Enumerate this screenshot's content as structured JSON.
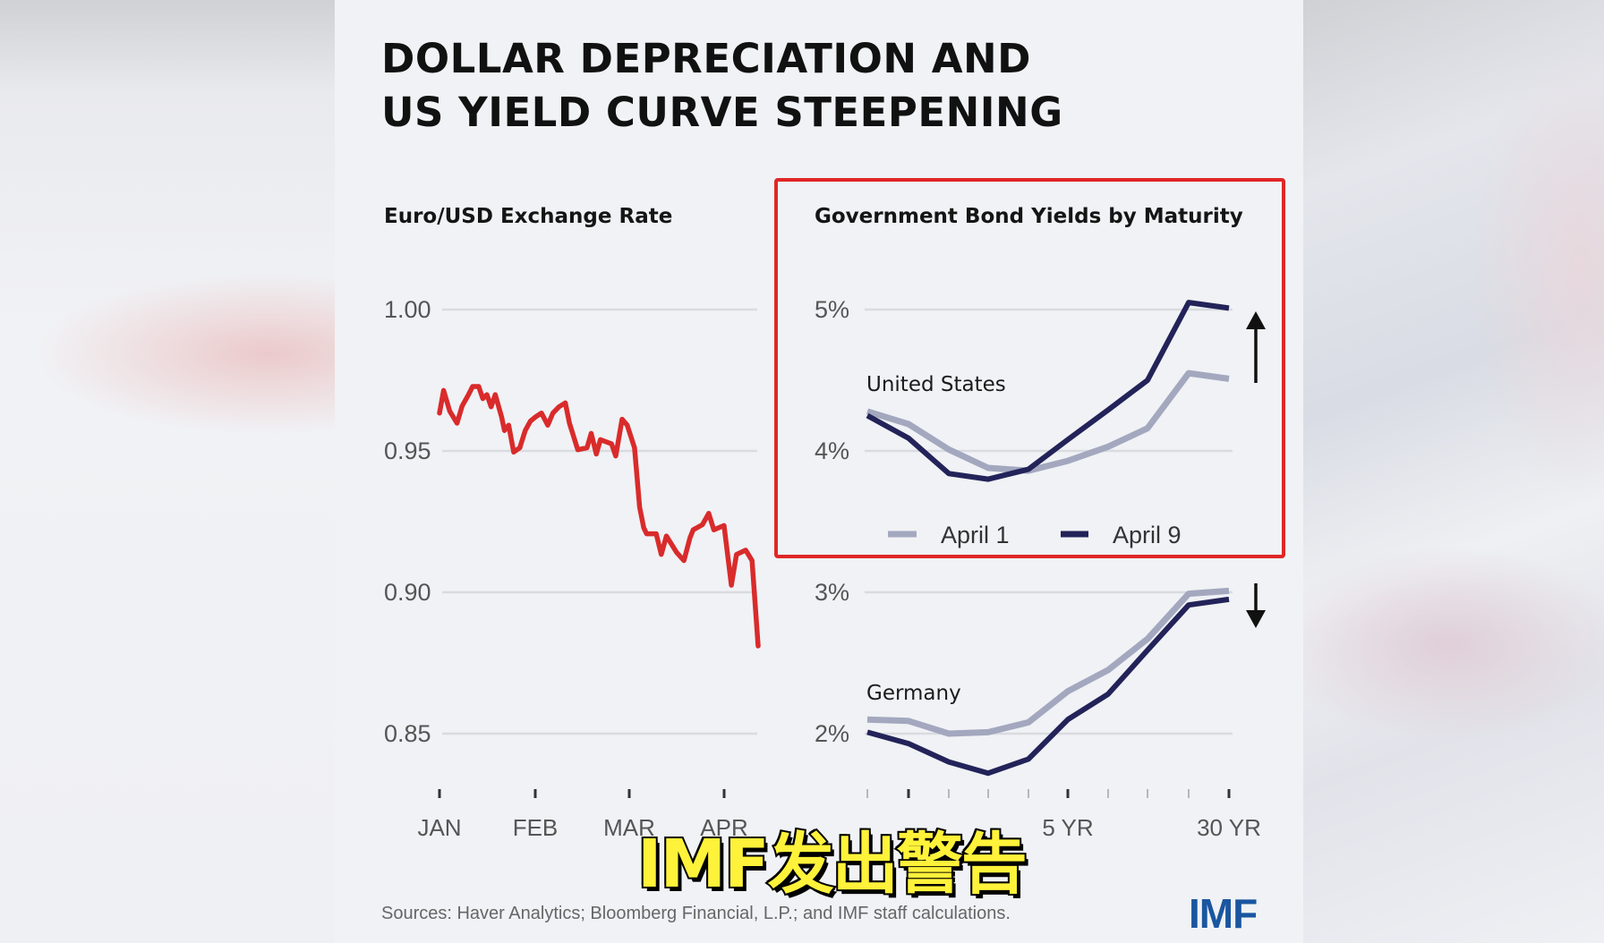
{
  "title": {
    "line1": "DOLLAR DEPRECIATION AND",
    "line2": "US YIELD CURVE STEEPENING"
  },
  "left_chart": {
    "subtitle": "Euro/USD Exchange Rate"
  },
  "right_chart": {
    "subtitle": "Government Bond Yields by Maturity",
    "us_label": "United States",
    "germany_label": "Germany",
    "legend": {
      "april1": "April 1",
      "april9": "April 9"
    }
  },
  "sources": "Sources: Haver Analytics; Bloomberg Financial, L.P.; and IMF staff calculations.",
  "logo": "IMF",
  "caption": "IMF发出警告",
  "colors": {
    "euro_line": "#d92b2b",
    "april1": "#a3a8bf",
    "april9": "#23235a",
    "highlight_box": "#e02626",
    "logo": "#1a56a0",
    "caption_fill": "#fff23a"
  },
  "chart_data": [
    {
      "type": "line",
      "title": "Euro/USD Exchange Rate",
      "xlabel": "",
      "ylabel": "",
      "ylim": [
        0.835,
        1.0
      ],
      "yticks": [
        "1.00",
        "0.95",
        "0.90",
        "0.85"
      ],
      "ytick_values": [
        1.0,
        0.95,
        0.9,
        0.85
      ],
      "xticks": [
        "JAN",
        "FEB",
        "MAR",
        "APR"
      ],
      "grid": true,
      "series": [
        {
          "name": "Euro/USD",
          "x_frac": [
            0.0,
            0.013,
            0.032,
            0.055,
            0.071,
            0.091,
            0.104,
            0.123,
            0.136,
            0.149,
            0.162,
            0.175,
            0.195,
            0.204,
            0.217,
            0.233,
            0.252,
            0.269,
            0.285,
            0.301,
            0.32,
            0.34,
            0.356,
            0.375,
            0.395,
            0.408,
            0.434,
            0.463,
            0.476,
            0.492,
            0.505,
            0.54,
            0.553,
            0.573,
            0.589,
            0.612,
            0.628,
            0.641,
            0.65,
            0.68,
            0.696,
            0.712,
            0.744,
            0.767,
            0.786,
            0.796,
            0.825,
            0.845,
            0.861,
            0.893,
            0.916,
            0.932,
            0.961,
            0.981,
            1.0
          ],
          "values": [
            0.9634,
            0.9714,
            0.9641,
            0.9598,
            0.9659,
            0.9699,
            0.9728,
            0.9728,
            0.9685,
            0.9699,
            0.9656,
            0.9699,
            0.962,
            0.9572,
            0.9591,
            0.9496,
            0.9511,
            0.9572,
            0.9605,
            0.962,
            0.9634,
            0.9591,
            0.9634,
            0.9656,
            0.967,
            0.9598,
            0.9504,
            0.9511,
            0.9562,
            0.9489,
            0.954,
            0.9525,
            0.9482,
            0.9612,
            0.9591,
            0.9511,
            0.9301,
            0.9228,
            0.9207,
            0.9207,
            0.9134,
            0.9199,
            0.9141,
            0.9112,
            0.9192,
            0.9221,
            0.9239,
            0.9279,
            0.9221,
            0.9236,
            0.9025,
            0.9134,
            0.9149,
            0.9112,
            0.881
          ]
        }
      ]
    },
    {
      "type": "line",
      "title": "Government Bond Yields by Maturity — United States",
      "ylabel": "",
      "yticks": [
        "5%",
        "4%"
      ],
      "ytick_values": [
        5,
        4
      ],
      "ylim": [
        3.6,
        5.1
      ],
      "x_tick_count": 10,
      "xticks_labeled": {
        "5": "5 YR",
        "9": "30 YR"
      },
      "grid": true,
      "annotation": "up-arrow",
      "series": [
        {
          "name": "April 1",
          "values": [
            4.28,
            4.19,
            4.01,
            3.88,
            3.86,
            3.93,
            4.03,
            4.16,
            4.55,
            4.51
          ]
        },
        {
          "name": "April 9",
          "values": [
            4.25,
            4.09,
            3.84,
            3.8,
            3.87,
            4.08,
            4.29,
            4.5,
            5.05,
            5.01
          ]
        }
      ]
    },
    {
      "type": "line",
      "title": "Government Bond Yields by Maturity — Germany",
      "ylabel": "",
      "yticks": [
        "3%",
        "2%"
      ],
      "ytick_values": [
        3,
        2
      ],
      "ylim": [
        1.6,
        3.1
      ],
      "x_tick_count": 10,
      "xticks": [
        "",
        "",
        "",
        "",
        "",
        "5 YR",
        "",
        "",
        "",
        "30 YR"
      ],
      "grid": true,
      "annotation": "down-arrow",
      "series": [
        {
          "name": "April 1",
          "values": [
            2.1,
            2.09,
            2.0,
            2.01,
            2.08,
            2.3,
            2.45,
            2.67,
            2.99,
            3.01
          ]
        },
        {
          "name": "April 9",
          "values": [
            2.01,
            1.93,
            1.8,
            1.72,
            1.82,
            2.1,
            2.28,
            2.59,
            2.91,
            2.95
          ]
        }
      ]
    }
  ]
}
